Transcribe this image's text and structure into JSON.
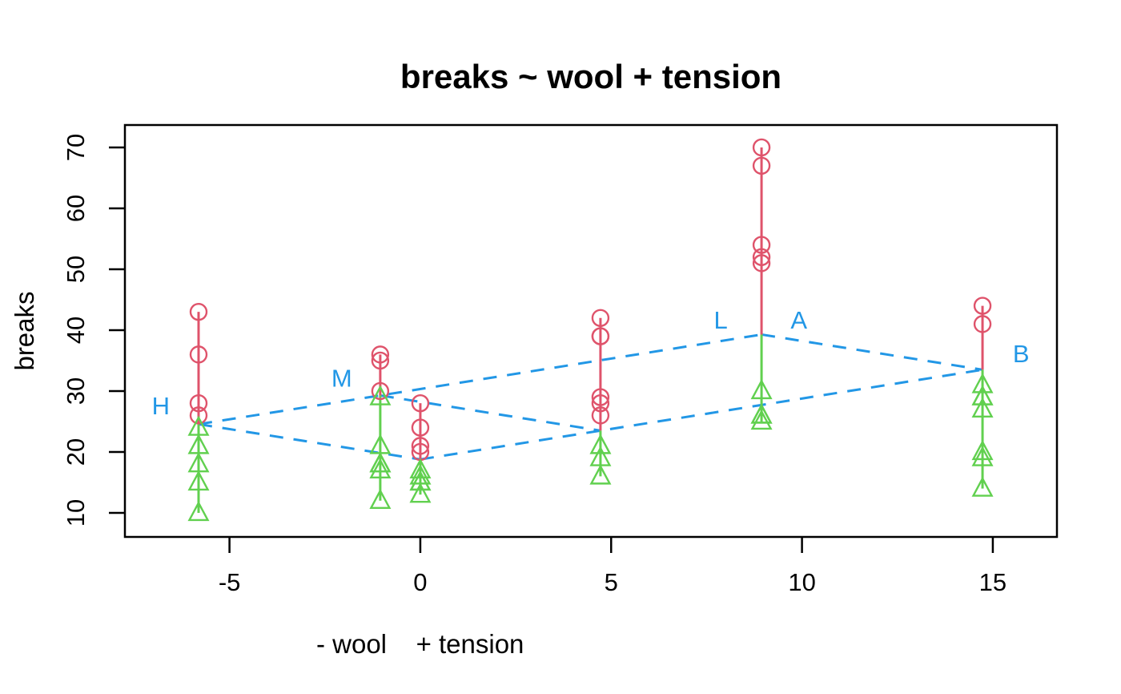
{
  "page": {
    "background": "#ffffff"
  },
  "chart_data": {
    "type": "scatter",
    "subtype": "two-way-fit-plot (R plot of breaks ~ wool + tension, warpbreaks)",
    "title": "breaks ~ wool + tension",
    "ylabel": "breaks",
    "xlabel_parts": [
      "- wool",
      "+ tension"
    ],
    "x_ticks": [
      -5,
      0,
      5,
      10,
      15
    ],
    "y_ticks": [
      10,
      20,
      30,
      40,
      50,
      60,
      70
    ],
    "xlim": [
      -7.74,
      16.68
    ],
    "ylim": [
      6.05,
      73.68
    ],
    "grid": false,
    "legend_position": "none",
    "colors": {
      "above_marker": "#DF536B",
      "below_marker": "#61D04F",
      "fit_lines": "#2297E6",
      "axis": "#000000",
      "background": "#ffffff"
    },
    "marker_above": "open-circle",
    "marker_below": "open-triangle-up",
    "groups": [
      {
        "wool": "A",
        "tension": "H",
        "x": -5.81,
        "fit": 24.56,
        "above": [
          43,
          36,
          28,
          26
        ],
        "below": [
          24,
          21,
          18,
          15,
          10
        ]
      },
      {
        "wool": "A",
        "tension": "M",
        "x": -1.05,
        "fit": 29.28,
        "above": [
          36,
          35,
          30
        ],
        "below": [
          29,
          21,
          18,
          18,
          17,
          12
        ]
      },
      {
        "wool": "A",
        "tension": "L",
        "x": 8.94,
        "fit": 39.28,
        "above": [
          70,
          67,
          54,
          52,
          51
        ],
        "below": [
          30,
          26,
          26,
          25
        ]
      },
      {
        "wool": "B",
        "tension": "H",
        "x": 0.0,
        "fit": 18.78,
        "above": [
          28,
          24,
          21,
          20
        ],
        "below": [
          17,
          16,
          15,
          15,
          13
        ]
      },
      {
        "wool": "B",
        "tension": "M",
        "x": 4.72,
        "fit": 23.5,
        "above": [
          42,
          39,
          39,
          29,
          28,
          26
        ],
        "below": [
          21,
          19,
          16
        ]
      },
      {
        "wool": "B",
        "tension": "L",
        "x": 14.73,
        "fit": 33.5,
        "above": [
          44,
          41
        ],
        "below": [
          31,
          29,
          29,
          27,
          20,
          19,
          14
        ]
      }
    ],
    "wool_line_order": [
      "H",
      "M",
      "L"
    ],
    "wool_lines": [
      "A",
      "B"
    ],
    "tension_links": [
      "H",
      "M",
      "L"
    ],
    "line_labels": [
      {
        "text": "H",
        "x": -6.8,
        "y": 27.6
      },
      {
        "text": "M",
        "x": -2.06,
        "y": 32.2
      },
      {
        "text": "L",
        "x": 7.87,
        "y": 41.7
      },
      {
        "text": "A",
        "x": 9.92,
        "y": 41.7
      },
      {
        "text": "B",
        "x": 15.74,
        "y": 36.2
      }
    ]
  }
}
